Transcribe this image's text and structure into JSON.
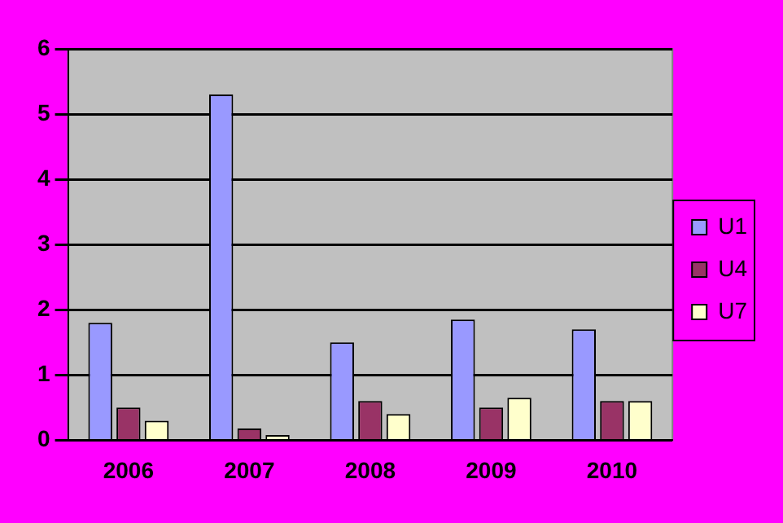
{
  "chart_data": {
    "type": "bar",
    "categories": [
      "2006",
      "2007",
      "2008",
      "2009",
      "2010"
    ],
    "series": [
      {
        "name": "U1",
        "color": "#9999ff",
        "values": [
          1.8,
          5.3,
          1.5,
          1.85,
          1.7
        ]
      },
      {
        "name": "U4",
        "color": "#993366",
        "values": [
          0.5,
          0.18,
          0.6,
          0.5,
          0.6
        ]
      },
      {
        "name": "U7",
        "color": "#ffffcc",
        "values": [
          0.3,
          0.08,
          0.4,
          0.65,
          0.6
        ]
      }
    ],
    "ylim": [
      0,
      6
    ],
    "yticks": [
      0,
      1,
      2,
      3,
      4,
      5,
      6
    ],
    "grid": "y",
    "legend": "right"
  }
}
